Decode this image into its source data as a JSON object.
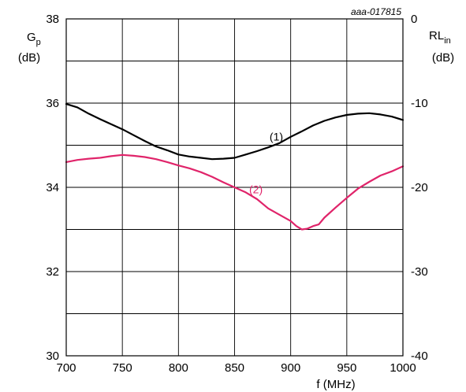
{
  "chart_data": {
    "type": "line",
    "reference_code": "aaa-017815",
    "xlabel": "f (MHz)",
    "ylabel_left": {
      "main": "G",
      "sub": "p",
      "unit": "(dB)"
    },
    "ylabel_right": {
      "main": "RL",
      "sub": "in",
      "unit": "(dB)"
    },
    "xlim": [
      700,
      1000
    ],
    "ylim_left": [
      30,
      38
    ],
    "ylim_right": [
      -40,
      0
    ],
    "x_ticks": [
      "700",
      "750",
      "800",
      "850",
      "900",
      "950",
      "1000"
    ],
    "y_ticks_left": [
      "30",
      "32",
      "34",
      "36",
      "38"
    ],
    "y_ticks_right": [
      "-40",
      "-30",
      "-20",
      "-10",
      "0"
    ],
    "grid": true,
    "series": [
      {
        "name": "(1)",
        "color": "#000000",
        "axis": "left",
        "x": [
          700,
          710,
          720,
          730,
          740,
          750,
          760,
          770,
          780,
          790,
          800,
          810,
          820,
          830,
          840,
          850,
          860,
          870,
          880,
          890,
          900,
          910,
          920,
          930,
          940,
          950,
          960,
          970,
          980,
          990,
          1000
        ],
        "y": [
          35.98,
          35.9,
          35.75,
          35.62,
          35.5,
          35.38,
          35.24,
          35.1,
          34.97,
          34.88,
          34.78,
          34.73,
          34.7,
          34.67,
          34.68,
          34.7,
          34.78,
          34.86,
          34.95,
          35.05,
          35.2,
          35.33,
          35.47,
          35.58,
          35.66,
          35.72,
          35.75,
          35.76,
          35.73,
          35.68,
          35.6
        ]
      },
      {
        "name": "(2)",
        "color": "#e0246a",
        "axis": "left",
        "x": [
          700,
          710,
          720,
          730,
          740,
          750,
          760,
          770,
          780,
          790,
          800,
          810,
          820,
          830,
          840,
          850,
          860,
          870,
          880,
          890,
          900,
          905,
          910,
          915,
          920,
          925,
          930,
          940,
          950,
          960,
          970,
          980,
          990,
          1000
        ],
        "y": [
          34.6,
          34.65,
          34.68,
          34.7,
          34.74,
          34.77,
          34.75,
          34.72,
          34.67,
          34.6,
          34.52,
          34.45,
          34.36,
          34.25,
          34.12,
          34.0,
          33.88,
          33.72,
          33.5,
          33.35,
          33.2,
          33.08,
          33.0,
          33.02,
          33.08,
          33.12,
          33.28,
          33.52,
          33.75,
          33.97,
          34.13,
          34.28,
          34.38,
          34.5
        ]
      }
    ]
  }
}
